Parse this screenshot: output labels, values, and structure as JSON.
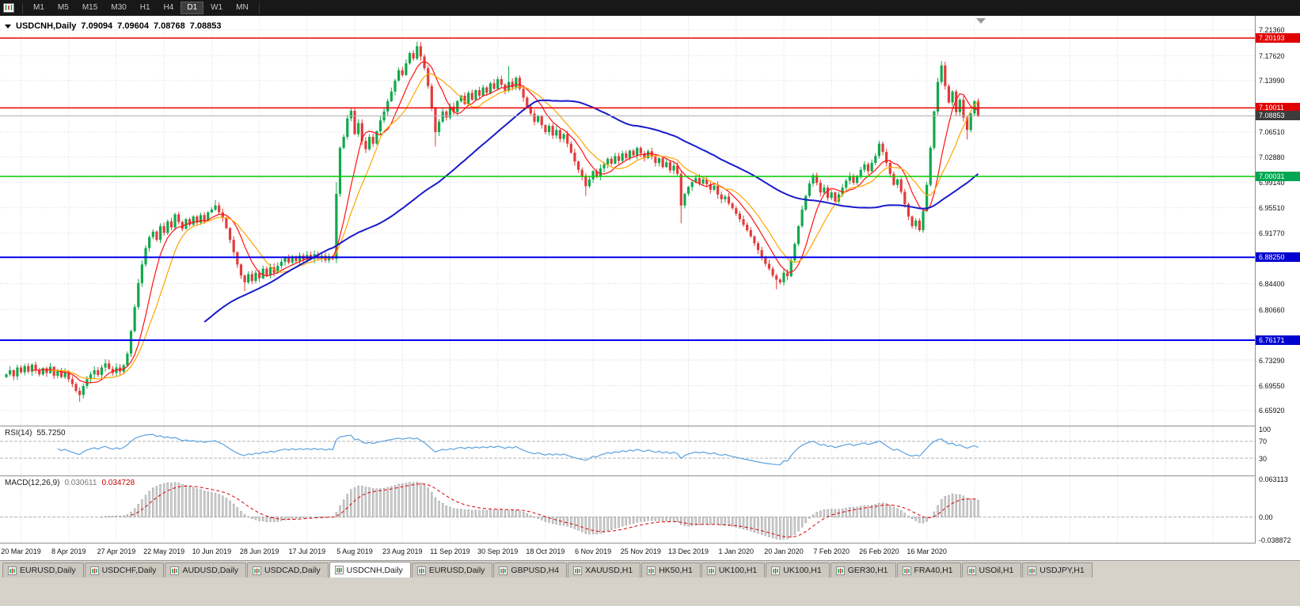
{
  "toolbar": {
    "timeframes": [
      "M1",
      "M5",
      "M15",
      "M30",
      "H1",
      "H4",
      "D1",
      "W1",
      "MN"
    ],
    "active_timeframe": "D1"
  },
  "chart": {
    "symbol_label": "USDCNH,Daily",
    "open": "7.09094",
    "high": "7.09604",
    "low": "7.08768",
    "close": "7.08853"
  },
  "price_axis": {
    "ticks": [
      "7.21360",
      "7.17620",
      "7.13990",
      "7.06510",
      "7.02880",
      "6.99140",
      "6.95510",
      "6.91770",
      "6.84400",
      "6.80660",
      "6.73290",
      "6.69550",
      "6.65920"
    ],
    "badges": [
      {
        "value": "7.20193",
        "bg": "#e00000"
      },
      {
        "value": "7.10011",
        "bg": "#e00000"
      },
      {
        "value": "7.08853",
        "bg": "#3c3c3c"
      },
      {
        "value": "7.00031",
        "bg": "#00a651"
      },
      {
        "value": "6.88250",
        "bg": "#0000d0"
      },
      {
        "value": "6.76171",
        "bg": "#0000d0"
      }
    ]
  },
  "rsi": {
    "label": "RSI(14)",
    "value": "55.7250",
    "period": 14,
    "line_color": "#5aa2e0",
    "levels": [
      {
        "value": "100",
        "num": 100,
        "line": false
      },
      {
        "value": "70",
        "num": 70,
        "line": true
      },
      {
        "value": "30",
        "num": 30,
        "line": true
      }
    ]
  },
  "macd": {
    "label": "MACD(12,26,9)",
    "value_main": "0.030611",
    "value_signal": "0.034728",
    "fast": 12,
    "slow": 26,
    "signal": 9,
    "axis_labels": [
      "0.063113",
      "0.00",
      "-0.038872"
    ],
    "histogram_color": "#cfcfcf",
    "histogram_edge": "#8a8a8a",
    "signal_color": "#dd0000"
  },
  "time_axis": {
    "labels": [
      "20 Mar 2019",
      "8 Apr 2019",
      "27 Apr 2019",
      "22 May 2019",
      "10 Jun 2019",
      "28 Jun 2019",
      "17 Jul 2019",
      "5 Aug 2019",
      "23 Aug 2019",
      "11 Sep 2019",
      "30 Sep 2019",
      "18 Oct 2019",
      "6 Nov 2019",
      "25 Nov 2019",
      "13 Dec 2019",
      "1 Jan 2020",
      "20 Jan 2020",
      "7 Feb 2020",
      "26 Feb 2020",
      "16 Mar 2020"
    ]
  },
  "tabs": {
    "labels": [
      "EURUSD,Daily",
      "USDCHF,Daily",
      "AUDUSD,Daily",
      "USDCAD,Daily",
      "USDCNH,Daily",
      "EURUSD,Daily",
      "GBPUSD,H4",
      "XAUUSD,H1",
      "HK50,H1",
      "UK100,H1",
      "UK100,H1",
      "GER30,H1",
      "FRA40,H1",
      "USOil,H1",
      "USDJPY,H1"
    ],
    "active_index": 4
  },
  "chart_data": {
    "type": "candlestick",
    "symbol": "USDCNH",
    "timeframe": "Daily",
    "ylim": [
      6.6373,
      7.2343
    ],
    "up_color": "#11a84c",
    "down_color": "#e23b3b",
    "grid_color": "#d9d9d9",
    "label_indices": [
      4,
      17,
      30,
      43,
      56,
      69,
      82,
      95,
      108,
      121,
      134,
      147,
      160,
      173,
      186,
      199,
      212,
      225,
      238,
      251
    ],
    "closes": [
      6.712,
      6.718,
      6.709,
      6.722,
      6.715,
      6.724,
      6.716,
      6.726,
      6.718,
      6.712,
      6.721,
      6.714,
      6.723,
      6.71,
      6.718,
      6.708,
      6.715,
      6.705,
      6.698,
      6.688,
      6.682,
      6.695,
      6.705,
      6.712,
      6.718,
      6.711,
      6.722,
      6.728,
      6.72,
      6.714,
      6.722,
      6.716,
      6.725,
      6.742,
      6.775,
      6.81,
      6.845,
      6.872,
      6.896,
      6.912,
      6.92,
      6.908,
      6.928,
      6.918,
      6.935,
      6.926,
      6.945,
      6.934,
      6.924,
      6.938,
      6.93,
      6.942,
      6.933,
      6.944,
      6.936,
      6.948,
      6.952,
      6.958,
      6.948,
      6.94,
      6.925,
      6.908,
      6.89,
      6.872,
      6.856,
      6.846,
      6.858,
      6.848,
      6.86,
      6.852,
      6.866,
      6.856,
      6.868,
      6.86,
      6.87,
      6.876,
      6.882,
      6.875,
      6.884,
      6.877,
      6.885,
      6.879,
      6.886,
      6.88,
      6.887,
      6.881,
      6.885,
      6.878,
      6.884,
      6.88,
      6.975,
      7.042,
      7.058,
      7.085,
      7.096,
      7.062,
      7.078,
      7.052,
      7.04,
      7.058,
      7.048,
      7.066,
      7.082,
      7.095,
      7.11,
      7.124,
      7.14,
      7.155,
      7.148,
      7.165,
      7.18,
      7.172,
      7.19,
      7.175,
      7.158,
      7.132,
      7.1,
      7.065,
      7.08,
      7.095,
      7.086,
      7.102,
      7.094,
      7.11,
      7.118,
      7.106,
      7.122,
      7.112,
      7.126,
      7.118,
      7.13,
      7.122,
      7.136,
      7.128,
      7.142,
      7.134,
      7.125,
      7.138,
      7.13,
      7.144,
      7.128,
      7.115,
      7.102,
      7.092,
      7.08,
      7.088,
      7.075,
      7.065,
      7.074,
      7.06,
      7.068,
      7.055,
      7.062,
      7.048,
      7.035,
      7.022,
      7.01,
      7.0,
      6.986,
      6.996,
      7.008,
      7.0,
      7.012,
      7.018,
      7.026,
      7.019,
      7.03,
      7.023,
      7.034,
      7.027,
      7.038,
      7.031,
      7.042,
      7.034,
      7.027,
      7.037,
      7.029,
      7.02,
      7.027,
      7.014,
      7.021,
      7.009,
      7.016,
      7.004,
      6.958,
      6.975,
      6.985,
      6.992,
      6.998,
      6.99,
      6.996,
      6.989,
      6.981,
      6.987,
      6.974,
      6.967,
      6.971,
      6.961,
      6.954,
      6.946,
      6.938,
      6.93,
      6.922,
      6.913,
      6.903,
      6.893,
      6.883,
      6.873,
      6.866,
      6.856,
      6.85,
      6.846,
      6.86,
      6.855,
      6.878,
      6.902,
      6.928,
      6.952,
      6.972,
      6.99,
      7.002,
      6.991,
      6.977,
      6.984,
      6.969,
      6.977,
      6.964,
      6.974,
      6.984,
      6.994,
      7.001,
      6.991,
      7.0,
      7.01,
      7.018,
      7.008,
      7.02,
      7.03,
      7.048,
      7.036,
      7.02,
      7.004,
      6.988,
      6.996,
      6.978,
      6.96,
      6.942,
      6.928,
      6.936,
      6.922,
      6.95,
      6.988,
      7.042,
      7.095,
      7.138,
      7.162,
      7.132,
      7.108,
      7.124,
      7.094,
      7.112,
      7.086,
      7.068,
      7.092,
      7.11,
      7.0885
    ],
    "wick_overrides": {
      "20": {
        "l": 6.672
      },
      "57": {
        "h": 6.966
      },
      "65": {
        "l": 6.833
      },
      "90": {
        "h": 6.992
      },
      "112": {
        "h": 7.1965
      },
      "117": {
        "l": 7.044
      },
      "137": {
        "h": 7.161
      },
      "158": {
        "l": 6.972
      },
      "184": {
        "h": 7.008,
        "l": 6.932
      },
      "210": {
        "l": 6.836
      },
      "255": {
        "h": 7.1685
      },
      "262": {
        "l": 7.054
      }
    },
    "moving_averages": [
      {
        "period": 8,
        "color": "#ff1111",
        "width": 1.2
      },
      {
        "period": 13,
        "color": "#ffa500",
        "width": 1.2
      },
      {
        "period": 55,
        "color": "#1a1acc",
        "width": 2
      }
    ],
    "hlines": [
      {
        "price": 7.20193,
        "color": "#ee0000",
        "width": 1.5
      },
      {
        "price": 7.10011,
        "color": "#ee0000",
        "width": 1.5
      },
      {
        "price": 7.08853,
        "color": "#b0b0b0",
        "width": 1
      },
      {
        "price": 7.00031,
        "color": "#00cc00",
        "width": 1.5
      },
      {
        "price": 6.8825,
        "color": "#0000ee",
        "width": 2
      },
      {
        "price": 6.76171,
        "color": "#0000ee",
        "width": 2
      }
    ]
  }
}
